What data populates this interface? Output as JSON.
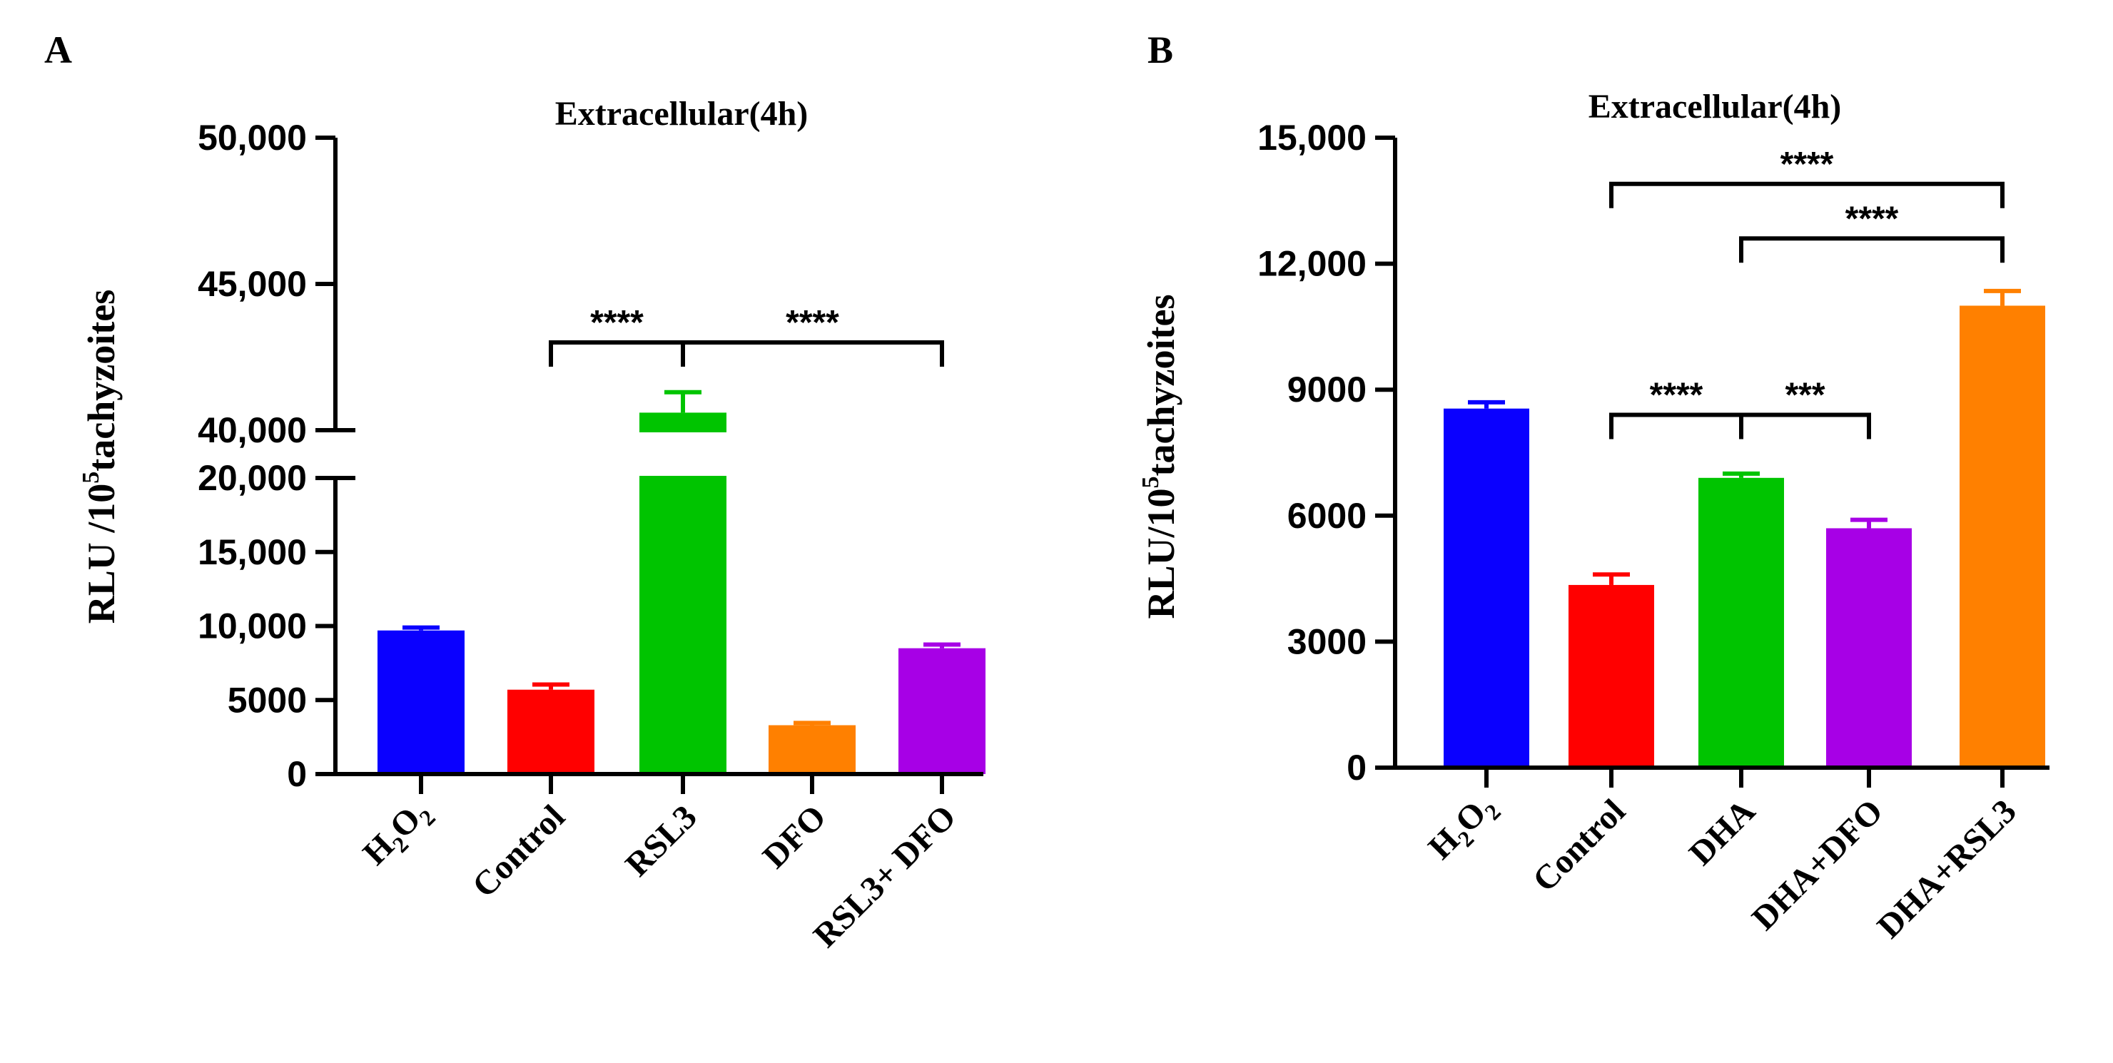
{
  "panel_labels": [
    "A",
    "B"
  ],
  "chart_data": [
    {
      "panel": "A",
      "type": "bar",
      "title": "Extracellular(4h)",
      "ylabel_pre": "RLU /10",
      "ylabel_sup": "5",
      "ylabel_post": "tachyzoites",
      "categories": [
        "H2O2",
        "Control",
        "RSL3",
        "DFO",
        "RSL3+ DFO"
      ],
      "values": [
        9700,
        5700,
        40600,
        3300,
        8500
      ],
      "errors": [
        200,
        350,
        700,
        150,
        250
      ],
      "colors": [
        "#0a00ff",
        "#ff0000",
        "#00c400",
        "#ff8000",
        "#a700e6"
      ],
      "axis_break": {
        "lower_max": 20000,
        "upper_min": 40000,
        "upper_max": 50000
      },
      "yticks_lower": [
        0,
        5000,
        10000,
        15000,
        20000
      ],
      "yticks_upper": [
        40000,
        45000,
        50000
      ],
      "ytick_labels_lower": [
        "0",
        "5000",
        "10,000",
        "15,000",
        "20,000"
      ],
      "ytick_labels_upper": [
        "40,000",
        "45,000",
        "50,000"
      ],
      "significance": [
        {
          "from": 1,
          "to": 2,
          "label": "****",
          "level": 43000
        },
        {
          "from": 2,
          "to": 4,
          "label": "****",
          "level": 43000
        }
      ]
    },
    {
      "panel": "B",
      "type": "bar",
      "title": "Extracellular(4h)",
      "ylabel_pre": "RLU/10",
      "ylabel_sup": "5",
      "ylabel_post": "tachyzoites",
      "categories": [
        "H2O2",
        "Control",
        "DHA",
        "DHA+DFO",
        "DHA+RSL3"
      ],
      "values": [
        8550,
        4350,
        6900,
        5700,
        11000
      ],
      "errors": [
        150,
        250,
        100,
        200,
        350
      ],
      "colors": [
        "#0a00ff",
        "#ff0000",
        "#00c400",
        "#a700e6",
        "#ff8000"
      ],
      "ylim": [
        0,
        15000
      ],
      "yticks": [
        0,
        3000,
        6000,
        9000,
        12000,
        15000
      ],
      "ytick_labels": [
        "0",
        "3000",
        "6000",
        "9000",
        "12,000",
        "15,000"
      ],
      "significance": [
        {
          "from": 1,
          "to": 4,
          "label": "****",
          "level": 13900
        },
        {
          "from": 2,
          "to": 4,
          "label": "****",
          "level": 12600
        },
        {
          "from": 1,
          "to": 2,
          "label": "****",
          "level": 8400
        },
        {
          "from": 2,
          "to": 3,
          "label": "***",
          "level": 8400
        }
      ]
    }
  ]
}
